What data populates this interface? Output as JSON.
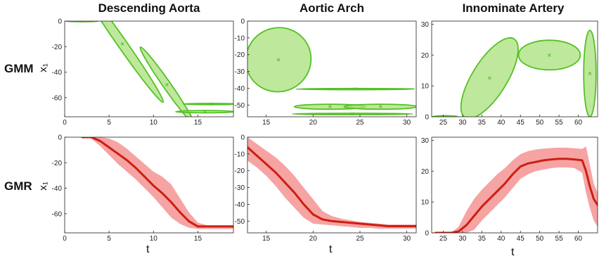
{
  "column_titles": [
    "Descending Aorta",
    "Aortic Arch",
    "Innominate Artery"
  ],
  "row_labels": [
    "GMM",
    "GMR"
  ],
  "row_axis_labels": [
    "x₁",
    "x₁"
  ],
  "bottom_axis_labels": [
    "t",
    "t",
    "t"
  ],
  "colors": {
    "gmm_fill": "#a8e07a",
    "gmm_stroke": "#55c025",
    "gmr_band": "#f6a3a3",
    "gmr_line": "#cc1f10",
    "axis": "#222222"
  },
  "chart_data": [
    {
      "type": "scatter",
      "panel": "gmm-descending-aorta",
      "title": "Descending Aorta",
      "ylabel": "x₁",
      "xlim": [
        0,
        19
      ],
      "ylim": [
        -75,
        0
      ],
      "xticks": [
        0,
        5,
        10,
        15
      ],
      "yticks": [
        0,
        -20,
        -40,
        -60
      ],
      "xtick_labels": [
        "0",
        "5",
        "10",
        "15"
      ],
      "ytick_labels": [
        "0",
        "-20",
        "-40",
        "-60"
      ],
      "ellipses": [
        {
          "cx": 2,
          "cy": 0,
          "rx": 1.8,
          "ry": 0.5,
          "angle": 0
        },
        {
          "cx": 6.5,
          "cy": -18,
          "rx": 8,
          "ry": 3.6,
          "angle": 55
        },
        {
          "cx": 11.5,
          "cy": -50,
          "rx": 5.2,
          "ry": 3,
          "angle": 55
        },
        {
          "cx": 16.5,
          "cy": -65,
          "rx": 3.2,
          "ry": 0.45,
          "angle": 0
        },
        {
          "cx": 15.8,
          "cy": -71,
          "rx": 3.3,
          "ry": 0.9,
          "angle": 0
        }
      ],
      "centers": [
        {
          "x": 2,
          "y": 0
        },
        {
          "x": 6.5,
          "y": -18
        },
        {
          "x": 11.5,
          "y": -50
        },
        {
          "x": 16.5,
          "y": -65
        },
        {
          "x": 15.8,
          "y": -71
        }
      ]
    },
    {
      "type": "scatter",
      "panel": "gmm-aortic-arch",
      "title": "Aortic Arch",
      "xlim": [
        13,
        31
      ],
      "ylim": [
        -57,
        0
      ],
      "xticks": [
        15,
        20,
        25,
        30
      ],
      "yticks": [
        0,
        -10,
        -20,
        -30,
        -40,
        -50
      ],
      "xtick_labels": [
        "15",
        "20",
        "25",
        "30"
      ],
      "ytick_labels": [
        "0",
        "-10",
        "-20",
        "-30",
        "-40",
        "-50"
      ],
      "ellipses": [
        {
          "cx": 16.3,
          "cy": -23,
          "rx": 3.5,
          "ry": 19,
          "angle": -28
        },
        {
          "cx": 24.5,
          "cy": -40.5,
          "rx": 6.3,
          "ry": 0.35,
          "angle": 0
        },
        {
          "cx": 21.8,
          "cy": -51,
          "rx": 3.8,
          "ry": 1.5,
          "angle": 0
        },
        {
          "cx": 27.2,
          "cy": -51,
          "rx": 3.9,
          "ry": 1.5,
          "angle": 0
        },
        {
          "cx": 24.2,
          "cy": -55.3,
          "rx": 6.4,
          "ry": 0.4,
          "angle": 0
        }
      ],
      "centers": [
        {
          "x": 16.3,
          "y": -23
        },
        {
          "x": 24.5,
          "y": -40.5
        },
        {
          "x": 21.8,
          "y": -51
        },
        {
          "x": 27.2,
          "y": -51
        },
        {
          "x": 24.2,
          "y": -55.3
        }
      ]
    },
    {
      "type": "scatter",
      "panel": "gmm-innominate-artery",
      "title": "Innominate Artery",
      "xlim": [
        22,
        65
      ],
      "ylim": [
        0,
        31
      ],
      "xticks": [
        25,
        30,
        35,
        40,
        45,
        50,
        55,
        60
      ],
      "yticks": [
        0,
        10,
        20,
        30
      ],
      "xtick_labels": [
        "25",
        "30",
        "35",
        "40",
        "45",
        "50",
        "55",
        "60"
      ],
      "ytick_labels": [
        "0",
        "10",
        "20",
        "30"
      ],
      "ellipses": [
        {
          "cx": 25.5,
          "cy": 0,
          "rx": 3.3,
          "ry": 0.35,
          "angle": 0
        },
        {
          "cx": 37,
          "cy": 12.5,
          "rx": 4.5,
          "ry": 15,
          "angle": 32
        },
        {
          "cx": 52.5,
          "cy": 20,
          "rx": 8,
          "ry": 4.8,
          "angle": 0
        },
        {
          "cx": 63,
          "cy": 14,
          "rx": 1.6,
          "ry": 14,
          "angle": 0
        }
      ],
      "centers": [
        {
          "x": 25.5,
          "y": 0
        },
        {
          "x": 37,
          "y": 12.5
        },
        {
          "x": 52.5,
          "y": 20
        },
        {
          "x": 63,
          "y": 14
        }
      ]
    },
    {
      "type": "line",
      "panel": "gmr-descending-aorta",
      "ylabel": "x₁",
      "xlabel": "t",
      "xlim": [
        0,
        19
      ],
      "ylim": [
        -75,
        0
      ],
      "xticks": [
        0,
        5,
        10,
        15
      ],
      "yticks": [
        0,
        -20,
        -40,
        -60
      ],
      "xtick_labels": [
        "0",
        "5",
        "10",
        "15"
      ],
      "ytick_labels": [
        "0",
        "-20",
        "-40",
        "-60"
      ],
      "x": [
        2,
        3,
        4,
        5,
        6,
        7,
        8,
        9,
        10,
        11,
        12,
        13,
        14,
        15,
        16,
        17,
        18,
        19
      ],
      "y": [
        0,
        0,
        -3,
        -8,
        -13,
        -18,
        -24,
        -31,
        -38,
        -44,
        -51,
        -59,
        -66,
        -70,
        -70,
        -70,
        -70,
        -70
      ],
      "band_upper": [
        0,
        0,
        0,
        -1,
        -4,
        -9,
        -15,
        -21,
        -27,
        -31,
        -37,
        -48,
        -59,
        -67,
        -69,
        -69,
        -69,
        -69
      ],
      "band_lower": [
        0,
        -1,
        -7,
        -14,
        -21,
        -27,
        -33,
        -40,
        -47,
        -55,
        -63,
        -68,
        -71,
        -72,
        -72,
        -72,
        -72,
        -72
      ]
    },
    {
      "type": "line",
      "panel": "gmr-aortic-arch",
      "xlabel": "t",
      "xlim": [
        13,
        31
      ],
      "ylim": [
        -57,
        0
      ],
      "xticks": [
        15,
        20,
        25,
        30
      ],
      "yticks": [
        0,
        -10,
        -20,
        -30,
        -40,
        -50
      ],
      "xtick_labels": [
        "15",
        "20",
        "25",
        "30"
      ],
      "ytick_labels": [
        "0",
        "-10",
        "-20",
        "-30",
        "-40",
        "-50"
      ],
      "x": [
        13,
        14,
        15,
        16,
        17,
        18,
        19,
        20,
        21,
        22,
        23,
        24,
        25,
        26,
        27,
        28,
        29,
        30,
        31
      ],
      "y": [
        -6,
        -11,
        -16,
        -21,
        -27,
        -33,
        -40,
        -46,
        -49,
        -50,
        -50.5,
        -51,
        -51.5,
        -52,
        -52.5,
        -53,
        -53,
        -53,
        -53
      ],
      "band_upper": [
        0,
        -4,
        -8,
        -12,
        -17,
        -23,
        -30,
        -37,
        -44,
        -47,
        -48.5,
        -49.5,
        -50.5,
        -51,
        -51.5,
        -52,
        -52,
        -52,
        -52
      ],
      "band_lower": [
        -14,
        -18,
        -23,
        -29,
        -36,
        -42,
        -48,
        -51.5,
        -52,
        -52.5,
        -53,
        -53.5,
        -54,
        -54,
        -54.5,
        -54.5,
        -54.5,
        -54.5,
        -54.5
      ]
    },
    {
      "type": "line",
      "panel": "gmr-innominate-artery",
      "xlabel": "t",
      "xlim": [
        22,
        65
      ],
      "ylim": [
        0,
        31
      ],
      "xticks": [
        25,
        30,
        35,
        40,
        45,
        50,
        55,
        60
      ],
      "yticks": [
        0,
        10,
        20,
        30
      ],
      "xtick_labels": [
        "25",
        "30",
        "35",
        "40",
        "45",
        "50",
        "55",
        "60"
      ],
      "ytick_labels": [
        "0",
        "10",
        "20",
        "30"
      ],
      "x": [
        23,
        25,
        27,
        29,
        31,
        33,
        35,
        37,
        39,
        41,
        43,
        45,
        47,
        49,
        51,
        53,
        55,
        57,
        59,
        61,
        62,
        63,
        64,
        65
      ],
      "y": [
        0,
        0,
        0,
        0.5,
        2.5,
        5.5,
        8.5,
        11,
        13.5,
        16,
        19,
        21.5,
        22.5,
        23,
        23.5,
        23.8,
        24,
        24,
        23.8,
        23.5,
        20,
        15,
        11,
        9
      ],
      "band_upper": [
        0,
        0,
        0,
        2,
        7,
        11,
        14,
        16.5,
        19,
        21,
        23.5,
        25.5,
        26.5,
        27,
        27.3,
        27.5,
        27.6,
        27.6,
        27.4,
        27.2,
        28,
        22,
        16,
        13
      ],
      "band_lower": [
        0,
        0,
        0,
        0,
        0,
        1,
        4,
        6.5,
        9,
        11.5,
        14.5,
        17.5,
        19,
        20,
        20.5,
        21,
        21.2,
        21.2,
        21,
        19.5,
        13,
        8,
        4,
        2
      ]
    }
  ]
}
